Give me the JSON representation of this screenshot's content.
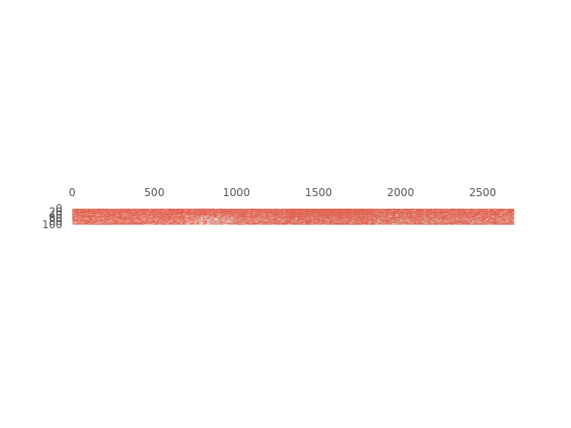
{
  "chart_data": {
    "type": "heatmap",
    "title": "",
    "xlabel": "",
    "ylabel": "",
    "x_range": [
      0,
      2690
    ],
    "y_range": [
      0,
      100
    ],
    "x_ticks": [
      "0",
      "500",
      "1000",
      "1500",
      "2000",
      "2500"
    ],
    "y_ticks": [
      "0",
      "20",
      "40",
      "60",
      "80",
      "100"
    ],
    "x_axis_position": "top",
    "grid": false,
    "legend": "none",
    "values": "binary sparsity pattern (1 = filled cell)",
    "fill_color": "#E24A33",
    "background_color": "#E5E5E5"
  }
}
